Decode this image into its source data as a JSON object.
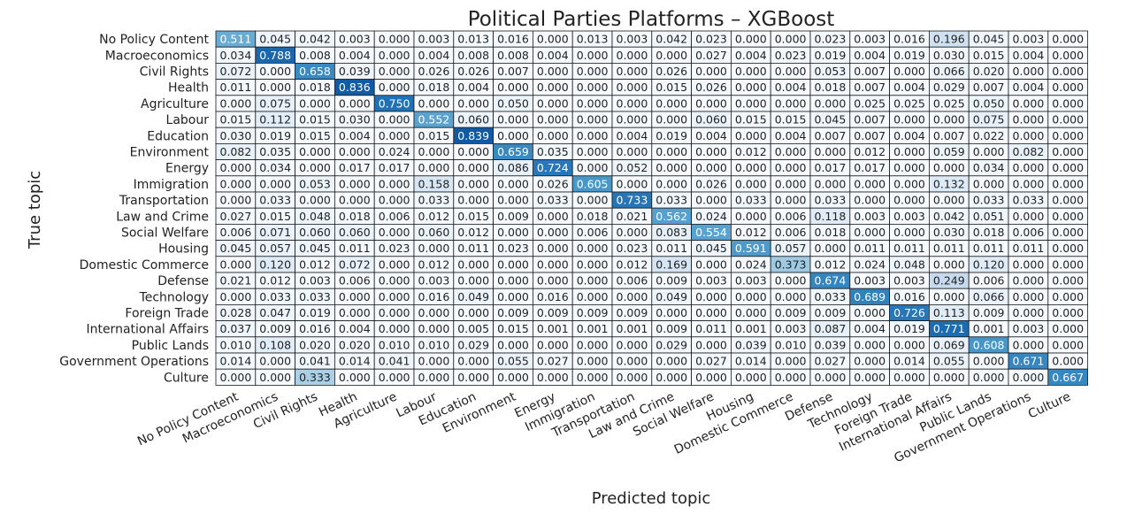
{
  "chart_data": {
    "type": "heatmap",
    "title": "Political Parties Platforms – XGBoost",
    "xlabel": "Predicted topic",
    "ylabel": "True topic",
    "rows": [
      "No Policy Content",
      "Macroeconomics",
      "Civil Rights",
      "Health",
      "Agriculture",
      "Labour",
      "Education",
      "Environment",
      "Energy",
      "Immigration",
      "Transportation",
      "Law and Crime",
      "Social Welfare",
      "Housing",
      "Domestic Commerce",
      "Defense",
      "Technology",
      "Foreign Trade",
      "International Affairs",
      "Public Lands",
      "Government Operations",
      "Culture"
    ],
    "columns": [
      "No Policy Content",
      "Macroeconomics",
      "Civil Rights",
      "Health",
      "Agriculture",
      "Labour",
      "Education",
      "Environment",
      "Energy",
      "Immigration",
      "Transportation",
      "Law and Crime",
      "Social Welfare",
      "Housing",
      "Domestic Commerce",
      "Defense",
      "Technology",
      "Foreign Trade",
      "International Affairs",
      "Public Lands",
      "Government Operations",
      "Culture"
    ],
    "values": [
      [
        0.511,
        0.045,
        0.042,
        0.003,
        0.0,
        0.003,
        0.013,
        0.016,
        0.0,
        0.013,
        0.003,
        0.042,
        0.023,
        0.0,
        0.0,
        0.023,
        0.003,
        0.016,
        0.196,
        0.045,
        0.003,
        0.0
      ],
      [
        0.034,
        0.788,
        0.008,
        0.004,
        0.0,
        0.004,
        0.008,
        0.008,
        0.004,
        0.0,
        0.0,
        0.0,
        0.027,
        0.004,
        0.023,
        0.019,
        0.004,
        0.019,
        0.03,
        0.015,
        0.004,
        0.0
      ],
      [
        0.072,
        0.0,
        0.658,
        0.039,
        0.0,
        0.026,
        0.026,
        0.007,
        0.0,
        0.0,
        0.0,
        0.026,
        0.0,
        0.0,
        0.0,
        0.053,
        0.007,
        0.0,
        0.066,
        0.02,
        0.0,
        0.0
      ],
      [
        0.011,
        0.0,
        0.018,
        0.836,
        0.0,
        0.018,
        0.004,
        0.0,
        0.0,
        0.0,
        0.0,
        0.015,
        0.026,
        0.0,
        0.004,
        0.018,
        0.007,
        0.004,
        0.029,
        0.007,
        0.004,
        0.0
      ],
      [
        0.0,
        0.075,
        0.0,
        0.0,
        0.75,
        0.0,
        0.0,
        0.05,
        0.0,
        0.0,
        0.0,
        0.0,
        0.0,
        0.0,
        0.0,
        0.0,
        0.025,
        0.025,
        0.025,
        0.05,
        0.0,
        0.0
      ],
      [
        0.015,
        0.112,
        0.015,
        0.03,
        0.0,
        0.552,
        0.06,
        0.0,
        0.0,
        0.0,
        0.0,
        0.0,
        0.06,
        0.015,
        0.015,
        0.045,
        0.007,
        0.0,
        0.0,
        0.075,
        0.0,
        0.0
      ],
      [
        0.03,
        0.019,
        0.015,
        0.004,
        0.0,
        0.015,
        0.839,
        0.0,
        0.0,
        0.0,
        0.004,
        0.019,
        0.004,
        0.0,
        0.004,
        0.007,
        0.007,
        0.004,
        0.007,
        0.022,
        0.0,
        0.0
      ],
      [
        0.082,
        0.035,
        0.0,
        0.0,
        0.024,
        0.0,
        0.0,
        0.659,
        0.035,
        0.0,
        0.0,
        0.0,
        0.0,
        0.012,
        0.0,
        0.0,
        0.012,
        0.0,
        0.059,
        0.0,
        0.082,
        0.0
      ],
      [
        0.0,
        0.034,
        0.0,
        0.017,
        0.017,
        0.0,
        0.0,
        0.086,
        0.724,
        0.0,
        0.052,
        0.0,
        0.0,
        0.0,
        0.0,
        0.017,
        0.017,
        0.0,
        0.0,
        0.034,
        0.0,
        0.0
      ],
      [
        0.0,
        0.0,
        0.053,
        0.0,
        0.0,
        0.158,
        0.0,
        0.0,
        0.026,
        0.605,
        0.0,
        0.0,
        0.026,
        0.0,
        0.0,
        0.0,
        0.0,
        0.0,
        0.132,
        0.0,
        0.0,
        0.0
      ],
      [
        0.0,
        0.033,
        0.0,
        0.0,
        0.0,
        0.033,
        0.0,
        0.0,
        0.033,
        0.0,
        0.733,
        0.033,
        0.0,
        0.033,
        0.0,
        0.033,
        0.0,
        0.0,
        0.0,
        0.033,
        0.033,
        0.0
      ],
      [
        0.027,
        0.015,
        0.048,
        0.018,
        0.006,
        0.012,
        0.015,
        0.009,
        0.0,
        0.018,
        0.021,
        0.562,
        0.024,
        0.0,
        0.006,
        0.118,
        0.003,
        0.003,
        0.042,
        0.051,
        0.0,
        0.0
      ],
      [
        0.006,
        0.071,
        0.06,
        0.06,
        0.0,
        0.06,
        0.012,
        0.0,
        0.0,
        0.006,
        0.0,
        0.083,
        0.554,
        0.012,
        0.006,
        0.018,
        0.0,
        0.0,
        0.03,
        0.018,
        0.006,
        0.0
      ],
      [
        0.045,
        0.057,
        0.045,
        0.011,
        0.023,
        0.0,
        0.011,
        0.023,
        0.0,
        0.0,
        0.023,
        0.011,
        0.045,
        0.591,
        0.057,
        0.0,
        0.011,
        0.011,
        0.011,
        0.011,
        0.011,
        0.0
      ],
      [
        0.0,
        0.12,
        0.012,
        0.072,
        0.0,
        0.012,
        0.0,
        0.0,
        0.0,
        0.0,
        0.012,
        0.169,
        0.0,
        0.024,
        0.373,
        0.012,
        0.024,
        0.048,
        0.0,
        0.12,
        0.0,
        0.0
      ],
      [
        0.021,
        0.012,
        0.003,
        0.006,
        0.0,
        0.003,
        0.0,
        0.0,
        0.0,
        0.0,
        0.006,
        0.009,
        0.003,
        0.003,
        0.0,
        0.674,
        0.003,
        0.003,
        0.249,
        0.006,
        0.0,
        0.0
      ],
      [
        0.0,
        0.033,
        0.033,
        0.0,
        0.0,
        0.016,
        0.049,
        0.0,
        0.016,
        0.0,
        0.0,
        0.049,
        0.0,
        0.0,
        0.0,
        0.033,
        0.689,
        0.016,
        0.0,
        0.066,
        0.0,
        0.0
      ],
      [
        0.028,
        0.047,
        0.019,
        0.0,
        0.0,
        0.0,
        0.0,
        0.009,
        0.009,
        0.009,
        0.009,
        0.0,
        0.0,
        0.0,
        0.009,
        0.009,
        0.0,
        0.726,
        0.113,
        0.009,
        0.0,
        0.0
      ],
      [
        0.037,
        0.009,
        0.016,
        0.004,
        0.0,
        0.0,
        0.005,
        0.015,
        0.001,
        0.001,
        0.001,
        0.009,
        0.011,
        0.001,
        0.003,
        0.087,
        0.004,
        0.019,
        0.771,
        0.001,
        0.003,
        0.0
      ],
      [
        0.01,
        0.108,
        0.02,
        0.02,
        0.01,
        0.01,
        0.029,
        0.0,
        0.0,
        0.0,
        0.0,
        0.029,
        0.0,
        0.039,
        0.01,
        0.039,
        0.0,
        0.0,
        0.069,
        0.608,
        0.0,
        0.0
      ],
      [
        0.014,
        0.0,
        0.041,
        0.014,
        0.041,
        0.0,
        0.0,
        0.055,
        0.027,
        0.0,
        0.0,
        0.0,
        0.027,
        0.014,
        0.0,
        0.027,
        0.0,
        0.014,
        0.055,
        0.0,
        0.671,
        0.0
      ],
      [
        0.0,
        0.0,
        0.333,
        0.0,
        0.0,
        0.0,
        0.0,
        0.0,
        0.0,
        0.0,
        0.0,
        0.0,
        0.0,
        0.0,
        0.0,
        0.0,
        0.0,
        0.0,
        0.0,
        0.0,
        0.0,
        0.667
      ]
    ],
    "value_format": "3 decimals",
    "colormap": "Blues",
    "value_range": [
      0,
      1
    ],
    "grid": true
  }
}
